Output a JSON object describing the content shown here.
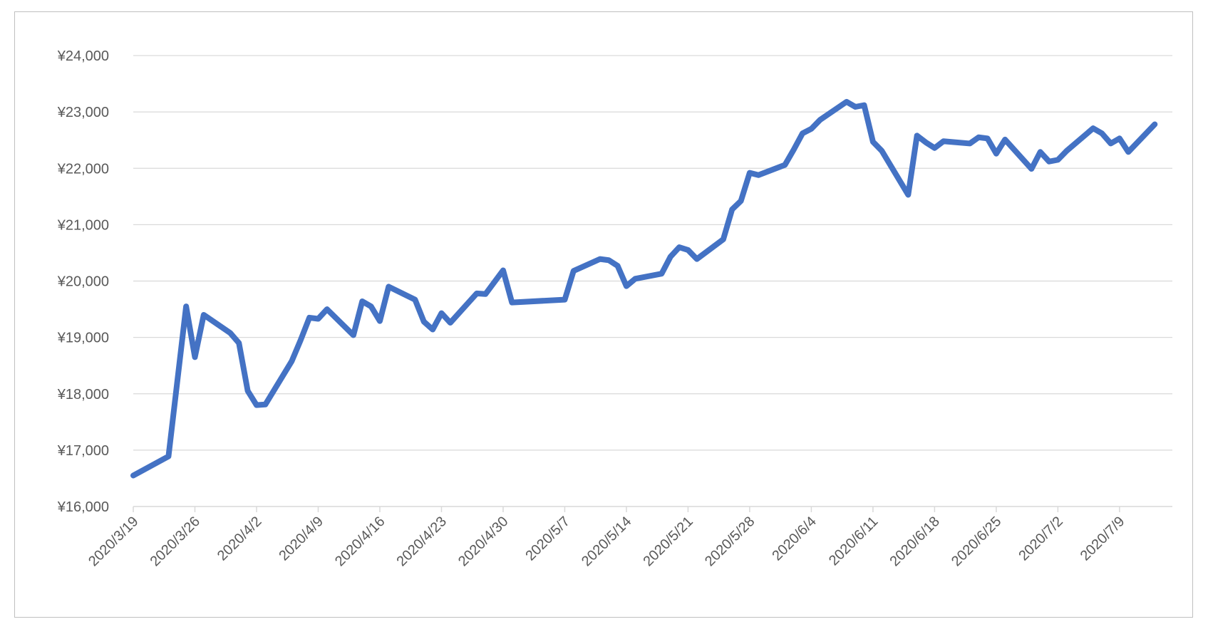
{
  "chart_data": {
    "type": "line",
    "title": "",
    "xlabel": "",
    "ylabel": "",
    "ylim": [
      16000,
      24000
    ],
    "y_ticks": [
      16000,
      17000,
      18000,
      19000,
      20000,
      21000,
      22000,
      23000,
      24000
    ],
    "y_tick_labels": [
      "¥16,000",
      "¥17,000",
      "¥18,000",
      "¥19,000",
      "¥20,000",
      "¥21,000",
      "¥22,000",
      "¥23,000",
      "¥24,000"
    ],
    "x_range": [
      "2020/3/19",
      "2020/7/15"
    ],
    "x_tick_labels": [
      "2020/3/19",
      "2020/3/26",
      "2020/4/2",
      "2020/4/9",
      "2020/4/16",
      "2020/4/23",
      "2020/4/30",
      "2020/5/7",
      "2020/5/14",
      "2020/5/21",
      "2020/5/28",
      "2020/6/4",
      "2020/6/11",
      "2020/6/18",
      "2020/6/25",
      "2020/7/2",
      "2020/7/9"
    ],
    "grid": true,
    "legend": "none",
    "series": [
      {
        "name": "",
        "color": "#4472c4",
        "points": [
          [
            "2020/3/19",
            16550
          ],
          [
            "2020/3/23",
            16890
          ],
          [
            "2020/3/25",
            19550
          ],
          [
            "2020/3/26",
            18650
          ],
          [
            "2020/3/27",
            19400
          ],
          [
            "2020/3/30",
            19080
          ],
          [
            "2020/3/31",
            18900
          ],
          [
            "2020/4/1",
            18050
          ],
          [
            "2020/4/2",
            17800
          ],
          [
            "2020/4/3",
            17810
          ],
          [
            "2020/4/6",
            18580
          ],
          [
            "2020/4/7",
            18950
          ],
          [
            "2020/4/8",
            19350
          ],
          [
            "2020/4/9",
            19330
          ],
          [
            "2020/4/10",
            19500
          ],
          [
            "2020/4/13",
            19040
          ],
          [
            "2020/4/14",
            19640
          ],
          [
            "2020/4/15",
            19550
          ],
          [
            "2020/4/16",
            19290
          ],
          [
            "2020/4/17",
            19900
          ],
          [
            "2020/4/20",
            19670
          ],
          [
            "2020/4/21",
            19280
          ],
          [
            "2020/4/22",
            19140
          ],
          [
            "2020/4/23",
            19430
          ],
          [
            "2020/4/24",
            19260
          ],
          [
            "2020/4/27",
            19780
          ],
          [
            "2020/4/28",
            19770
          ],
          [
            "2020/4/30",
            20190
          ],
          [
            "2020/5/1",
            19620
          ],
          [
            "2020/5/7",
            19670
          ],
          [
            "2020/5/8",
            20180
          ],
          [
            "2020/5/11",
            20390
          ],
          [
            "2020/5/12",
            20370
          ],
          [
            "2020/5/13",
            20270
          ],
          [
            "2020/5/14",
            19910
          ],
          [
            "2020/5/15",
            20040
          ],
          [
            "2020/5/18",
            20130
          ],
          [
            "2020/5/19",
            20430
          ],
          [
            "2020/5/20",
            20600
          ],
          [
            "2020/5/21",
            20550
          ],
          [
            "2020/5/22",
            20390
          ],
          [
            "2020/5/25",
            20740
          ],
          [
            "2020/5/26",
            21270
          ],
          [
            "2020/5/27",
            21420
          ],
          [
            "2020/5/28",
            21920
          ],
          [
            "2020/5/29",
            21880
          ],
          [
            "2020/6/1",
            22060
          ],
          [
            "2020/6/2",
            22330
          ],
          [
            "2020/6/3",
            22620
          ],
          [
            "2020/6/4",
            22700
          ],
          [
            "2020/6/5",
            22860
          ],
          [
            "2020/6/8",
            23180
          ],
          [
            "2020/6/9",
            23090
          ],
          [
            "2020/6/10",
            23120
          ],
          [
            "2020/6/11",
            22470
          ],
          [
            "2020/6/12",
            22310
          ],
          [
            "2020/6/15",
            21530
          ],
          [
            "2020/6/16",
            22580
          ],
          [
            "2020/6/17",
            22460
          ],
          [
            "2020/6/18",
            22360
          ],
          [
            "2020/6/19",
            22480
          ],
          [
            "2020/6/22",
            22440
          ],
          [
            "2020/6/23",
            22550
          ],
          [
            "2020/6/24",
            22530
          ],
          [
            "2020/6/25",
            22260
          ],
          [
            "2020/6/26",
            22510
          ],
          [
            "2020/6/29",
            21990
          ],
          [
            "2020/6/30",
            22290
          ],
          [
            "2020/7/1",
            22120
          ],
          [
            "2020/7/2",
            22150
          ],
          [
            "2020/7/3",
            22310
          ],
          [
            "2020/7/6",
            22710
          ],
          [
            "2020/7/7",
            22620
          ],
          [
            "2020/7/8",
            22440
          ],
          [
            "2020/7/9",
            22530
          ],
          [
            "2020/7/10",
            22290
          ],
          [
            "2020/7/13",
            22780
          ]
        ]
      }
    ]
  }
}
